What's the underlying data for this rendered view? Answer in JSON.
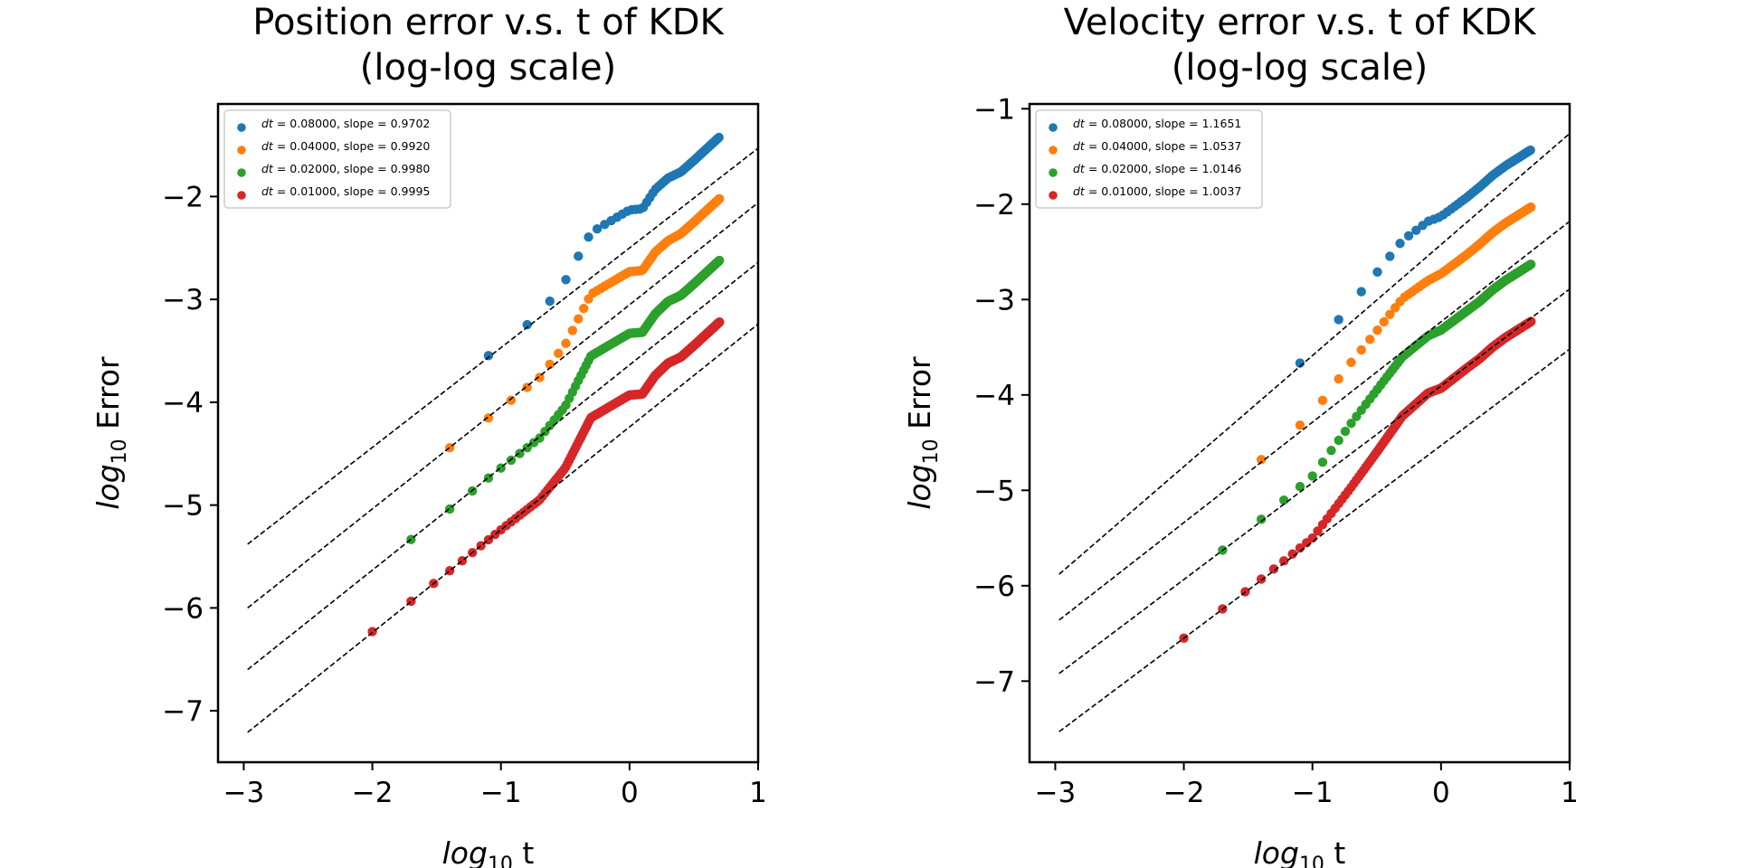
{
  "chart_data": [
    {
      "type": "scatter",
      "title_line1": "Position error v.s. t of KDK",
      "title_line2": "(log-log scale)",
      "xlabel_base": "log",
      "xlabel_sub": "10",
      "xlabel_rest": " t",
      "ylabel_base": "log",
      "ylabel_sub": "10",
      "ylabel_rest": " Error",
      "xlim": [
        -3.2,
        1.0
      ],
      "ylim": [
        -7.5,
        -1.1
      ],
      "xticks": [
        -3,
        -2,
        -1,
        0,
        1
      ],
      "xtick_labels": [
        "−3",
        "−2",
        "−1",
        "0",
        "1"
      ],
      "yticks": [
        -7,
        -6,
        -5,
        -4,
        -3,
        -2
      ],
      "ytick_labels": [
        "−7",
        "−6",
        "−5",
        "−4",
        "−3",
        "−2"
      ],
      "grid": false,
      "legend_position": "top-left",
      "series": [
        {
          "name": "dt = 0.08000, slope = 0.9702",
          "dt": "0.08000",
          "slope": "0.9702",
          "color": "#1f77b4",
          "fit": {
            "x": [
              -2.97,
              1.0
            ],
            "y": [
              -5.38,
              -1.53
            ]
          },
          "key_x": [
            -3.0,
            -2.0,
            -1.5,
            -1.0,
            -0.7,
            -0.5,
            -0.3,
            0.0,
            0.1,
            0.2,
            0.3,
            0.4,
            0.5,
            0.7
          ],
          "key_y": [
            -5.4,
            -4.43,
            -3.95,
            -3.45,
            -3.15,
            -2.82,
            -2.35,
            -2.13,
            -2.12,
            -1.93,
            -1.82,
            -1.76,
            -1.65,
            -1.42
          ]
        },
        {
          "name": "dt = 0.04000, slope = 0.9920",
          "dt": "0.04000",
          "slope": "0.9920",
          "color": "#ff7f0e",
          "fit": {
            "x": [
              -2.97,
              1.0
            ],
            "y": [
              -6.0,
              -2.06
            ]
          },
          "key_x": [
            -3.0,
            -2.0,
            -1.5,
            -1.0,
            -0.7,
            -0.5,
            -0.3,
            0.0,
            0.1,
            0.2,
            0.3,
            0.4,
            0.5,
            0.7
          ],
          "key_y": [
            -6.03,
            -5.04,
            -4.54,
            -4.06,
            -3.76,
            -3.44,
            -2.95,
            -2.73,
            -2.72,
            -2.54,
            -2.43,
            -2.36,
            -2.25,
            -2.02
          ]
        },
        {
          "name": "dt = 0.02000, slope = 0.9980",
          "dt": "0.02000",
          "slope": "0.9980",
          "color": "#2ca02c",
          "fit": {
            "x": [
              -2.97,
              1.0
            ],
            "y": [
              -6.6,
              -2.64
            ]
          },
          "key_x": [
            -3.0,
            -2.0,
            -1.5,
            -1.0,
            -0.7,
            -0.5,
            -0.3,
            0.0,
            0.1,
            0.2,
            0.3,
            0.4,
            0.5,
            0.7
          ],
          "key_y": [
            -6.62,
            -5.63,
            -5.14,
            -4.64,
            -4.35,
            -4.04,
            -3.55,
            -3.33,
            -3.32,
            -3.14,
            -3.02,
            -2.96,
            -2.85,
            -2.62
          ]
        },
        {
          "name": "dt = 0.01000, slope = 0.9995",
          "dt": "0.01000",
          "slope": "0.9995",
          "color": "#d62728",
          "fit": {
            "x": [
              -2.97,
              1.0
            ],
            "y": [
              -7.21,
              -3.24
            ]
          },
          "key_x": [
            -3.0,
            -2.0,
            -1.5,
            -1.0,
            -0.7,
            -0.5,
            -0.3,
            0.0,
            0.1,
            0.2,
            0.3,
            0.4,
            0.5,
            0.7
          ],
          "key_y": [
            -7.22,
            -6.23,
            -5.74,
            -5.24,
            -4.95,
            -4.64,
            -4.15,
            -3.93,
            -3.92,
            -3.74,
            -3.62,
            -3.56,
            -3.45,
            -3.22
          ]
        }
      ]
    },
    {
      "type": "scatter",
      "title_line1": "Velocity error v.s. t of KDK",
      "title_line2": "(log-log scale)",
      "xlabel_base": "log",
      "xlabel_sub": "10",
      "xlabel_rest": " t",
      "ylabel_base": "log",
      "ylabel_sub": "10",
      "ylabel_rest": " Error",
      "xlim": [
        -3.2,
        1.0
      ],
      "ylim": [
        -7.85,
        -0.95
      ],
      "xticks": [
        -3,
        -2,
        -1,
        0,
        1
      ],
      "xtick_labels": [
        "−3",
        "−2",
        "−1",
        "0",
        "1"
      ],
      "yticks": [
        -7,
        -6,
        -5,
        -4,
        -3,
        -2,
        -1
      ],
      "ytick_labels": [
        "−7",
        "−6",
        "−5",
        "−4",
        "−3",
        "−2",
        "−1"
      ],
      "grid": false,
      "legend_position": "top-left",
      "series": [
        {
          "name": "dt = 0.08000, slope = 1.1651",
          "dt": "0.08000",
          "slope": "1.1651",
          "color": "#1f77b4",
          "fit": {
            "x": [
              -2.97,
              1.0
            ],
            "y": [
              -5.88,
              -1.26
            ]
          },
          "key_x": [
            -3.0,
            -2.0,
            -1.5,
            -1.0,
            -0.7,
            -0.5,
            -0.3,
            -0.1,
            0.0,
            0.2,
            0.3,
            0.4,
            0.5,
            0.7
          ],
          "key_y": [
            -5.92,
            -4.73,
            -4.15,
            -3.55,
            -3.05,
            -2.72,
            -2.38,
            -2.18,
            -2.13,
            -1.93,
            -1.82,
            -1.7,
            -1.6,
            -1.43
          ]
        },
        {
          "name": "dt = 0.04000, slope = 1.0537",
          "dt": "0.04000",
          "slope": "1.0537",
          "color": "#ff7f0e",
          "fit": {
            "x": [
              -2.97,
              1.0
            ],
            "y": [
              -6.36,
              -2.18
            ]
          },
          "key_x": [
            -3.0,
            -2.0,
            -1.5,
            -1.0,
            -0.7,
            -0.5,
            -0.3,
            -0.1,
            0.0,
            0.2,
            0.3,
            0.4,
            0.5,
            0.7
          ],
          "key_y": [
            -6.39,
            -5.34,
            -4.8,
            -4.2,
            -3.66,
            -3.33,
            -2.99,
            -2.8,
            -2.73,
            -2.53,
            -2.42,
            -2.3,
            -2.2,
            -2.03
          ]
        },
        {
          "name": "dt = 0.02000, slope = 1.0146",
          "dt": "0.02000",
          "slope": "1.0146",
          "color": "#2ca02c",
          "fit": {
            "x": [
              -2.97,
              1.0
            ],
            "y": [
              -6.92,
              -2.89
            ]
          },
          "key_x": [
            -3.0,
            -2.0,
            -1.5,
            -1.0,
            -0.7,
            -0.5,
            -0.3,
            -0.1,
            0.0,
            0.2,
            0.3,
            0.4,
            0.5,
            0.7
          ],
          "key_y": [
            -6.95,
            -5.94,
            -5.42,
            -4.85,
            -4.3,
            -3.95,
            -3.6,
            -3.38,
            -3.32,
            -3.12,
            -3.02,
            -2.9,
            -2.8,
            -2.63
          ]
        },
        {
          "name": "dt = 0.01000, slope = 1.0037",
          "dt": "0.01000",
          "slope": "1.0037",
          "color": "#d62728",
          "fit": {
            "x": [
              -2.97,
              1.0
            ],
            "y": [
              -7.53,
              -3.52
            ]
          },
          "key_x": [
            -3.0,
            -2.0,
            -1.5,
            -1.0,
            -0.7,
            -0.5,
            -0.3,
            -0.1,
            0.0,
            0.2,
            0.3,
            0.4,
            0.5,
            0.7
          ],
          "key_y": [
            -7.55,
            -6.55,
            -6.04,
            -5.5,
            -4.97,
            -4.6,
            -4.22,
            -3.98,
            -3.93,
            -3.72,
            -3.62,
            -3.5,
            -3.4,
            -3.23
          ]
        }
      ]
    }
  ]
}
